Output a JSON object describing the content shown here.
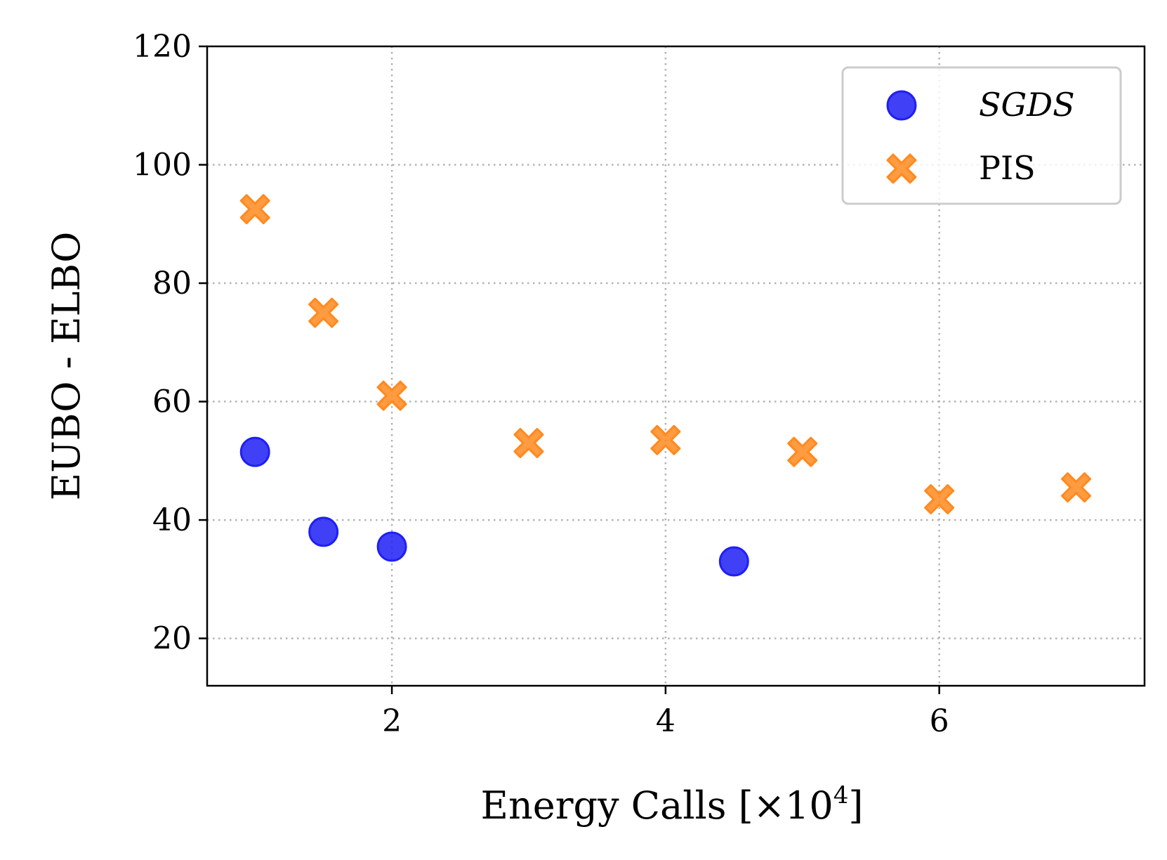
{
  "chart_data": {
    "type": "scatter",
    "xlabel": "Energy Calls [×10",
    "xlabel_exponent": "4",
    "xlabel_suffix": "]",
    "ylabel": "EUBO - ELBO",
    "xlim": [
      0.65,
      7.5
    ],
    "ylim": [
      12,
      120
    ],
    "x_ticks": [
      2,
      4,
      6
    ],
    "y_ticks": [
      20,
      40,
      60,
      80,
      100,
      120
    ],
    "grid": true,
    "grid_style": "dotted",
    "legend_position": "top-right",
    "series": [
      {
        "name": "SGDS",
        "marker": "circle",
        "color": "#1f1ff5",
        "x": [
          1,
          1.5,
          2,
          4.5
        ],
        "y": [
          51.5,
          38,
          35.5,
          33
        ]
      },
      {
        "name": "PIS",
        "marker": "x",
        "color": "#ff8a1f",
        "x": [
          1,
          1.5,
          2,
          3,
          4,
          5,
          6,
          7
        ],
        "y": [
          92.5,
          75,
          61,
          53,
          53.5,
          51.5,
          43.5,
          45.5
        ]
      }
    ]
  }
}
